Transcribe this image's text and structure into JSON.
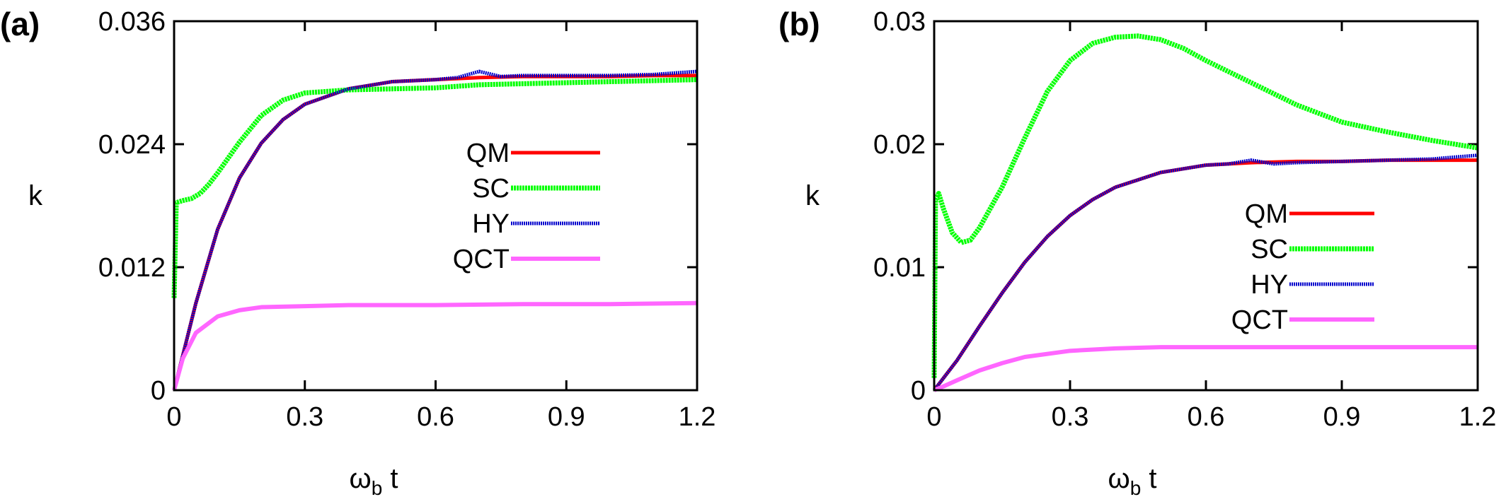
{
  "chart_data": [
    {
      "type": "line",
      "panel_label": "(a)",
      "xlabel_main": "ω",
      "xlabel_sub": "b",
      "xlabel_tail": " t",
      "ylabel": "k",
      "xlim": [
        0,
        1.2
      ],
      "ylim": [
        0,
        0.036
      ],
      "xticks": [
        "0",
        "0.3",
        "0.6",
        "0.9",
        "1.2"
      ],
      "xtick_values": [
        0,
        0.3,
        0.6,
        0.9,
        1.2
      ],
      "yticks": [
        "0",
        "0.012",
        "0.024",
        "0.036"
      ],
      "ytick_values": [
        0,
        0.012,
        0.024,
        0.036
      ],
      "legend_position": "center-right",
      "series": [
        {
          "name": "QM",
          "color": "#ff0000",
          "x": [
            0,
            0.05,
            0.1,
            0.15,
            0.2,
            0.25,
            0.3,
            0.4,
            0.5,
            0.6,
            0.7,
            0.8,
            0.9,
            1.0,
            1.1,
            1.2
          ],
          "y": [
            0,
            0.0085,
            0.0157,
            0.0207,
            0.0241,
            0.0264,
            0.0279,
            0.0294,
            0.0301,
            0.0303,
            0.0305,
            0.0306,
            0.0306,
            0.0306,
            0.0307,
            0.0307
          ]
        },
        {
          "name": "SC",
          "color": "#00ff00",
          "x": [
            0,
            0.005,
            0.02,
            0.04,
            0.06,
            0.08,
            0.1,
            0.15,
            0.2,
            0.25,
            0.3,
            0.4,
            0.5,
            0.6,
            0.7,
            0.8,
            0.9,
            1.0,
            1.1,
            1.2
          ],
          "y": [
            0.009,
            0.0183,
            0.0185,
            0.0187,
            0.0192,
            0.0201,
            0.0212,
            0.0242,
            0.0268,
            0.0283,
            0.029,
            0.0293,
            0.0294,
            0.0295,
            0.0298,
            0.0299,
            0.03,
            0.0301,
            0.0302,
            0.0303
          ]
        },
        {
          "name": "HY",
          "color": "#0000cc",
          "x": [
            0,
            0.05,
            0.1,
            0.15,
            0.2,
            0.25,
            0.3,
            0.4,
            0.5,
            0.6,
            0.65,
            0.7,
            0.75,
            0.8,
            0.9,
            1.0,
            1.1,
            1.2
          ],
          "y": [
            0,
            0.0085,
            0.0157,
            0.0207,
            0.0241,
            0.0264,
            0.0279,
            0.0294,
            0.0301,
            0.0303,
            0.0305,
            0.0311,
            0.0306,
            0.0307,
            0.0307,
            0.0307,
            0.0308,
            0.0311
          ]
        },
        {
          "name": "QCT",
          "color": "#ff66ff",
          "x": [
            0,
            0.02,
            0.05,
            0.1,
            0.15,
            0.2,
            0.3,
            0.4,
            0.6,
            0.8,
            1.0,
            1.2
          ],
          "y": [
            0,
            0.0031,
            0.0056,
            0.0072,
            0.0078,
            0.0081,
            0.0082,
            0.0083,
            0.0083,
            0.0084,
            0.0084,
            0.0085
          ]
        }
      ]
    },
    {
      "type": "line",
      "panel_label": "(b)",
      "xlabel_main": "ω",
      "xlabel_sub": "b",
      "xlabel_tail": " t",
      "ylabel": "k",
      "xlim": [
        0,
        1.2
      ],
      "ylim": [
        0,
        0.03
      ],
      "xticks": [
        "0",
        "0.3",
        "0.6",
        "0.9",
        "1.2"
      ],
      "xtick_values": [
        0,
        0.3,
        0.6,
        0.9,
        1.2
      ],
      "yticks": [
        "0",
        "0.01",
        "0.02",
        "0.03"
      ],
      "ytick_values": [
        0,
        0.01,
        0.02,
        0.03
      ],
      "legend_position": "center-right",
      "series": [
        {
          "name": "QM",
          "color": "#ff0000",
          "x": [
            0,
            0.05,
            0.1,
            0.15,
            0.2,
            0.25,
            0.3,
            0.35,
            0.4,
            0.5,
            0.6,
            0.7,
            0.8,
            0.9,
            1.0,
            1.1,
            1.2
          ],
          "y": [
            0,
            0.0024,
            0.0052,
            0.0079,
            0.0104,
            0.0125,
            0.0142,
            0.0155,
            0.0165,
            0.0177,
            0.0183,
            0.0185,
            0.0186,
            0.0186,
            0.0187,
            0.0187,
            0.0187
          ]
        },
        {
          "name": "SC",
          "color": "#00ff00",
          "x": [
            0,
            0.003,
            0.01,
            0.02,
            0.04,
            0.06,
            0.08,
            0.1,
            0.15,
            0.2,
            0.25,
            0.3,
            0.35,
            0.4,
            0.45,
            0.5,
            0.55,
            0.6,
            0.7,
            0.8,
            0.9,
            1.0,
            1.1,
            1.2
          ],
          "y": [
            0.001,
            0.0155,
            0.016,
            0.0148,
            0.0128,
            0.012,
            0.0122,
            0.0132,
            0.0165,
            0.0205,
            0.0243,
            0.0268,
            0.0282,
            0.0287,
            0.0288,
            0.0285,
            0.0278,
            0.0268,
            0.025,
            0.0232,
            0.0218,
            0.021,
            0.0203,
            0.0197
          ]
        },
        {
          "name": "HY",
          "color": "#0000cc",
          "x": [
            0,
            0.05,
            0.1,
            0.15,
            0.2,
            0.25,
            0.3,
            0.35,
            0.4,
            0.5,
            0.6,
            0.65,
            0.7,
            0.75,
            0.8,
            0.9,
            1.0,
            1.1,
            1.2
          ],
          "y": [
            0,
            0.0024,
            0.0052,
            0.0079,
            0.0104,
            0.0125,
            0.0142,
            0.0155,
            0.0165,
            0.0177,
            0.0183,
            0.0184,
            0.0187,
            0.0184,
            0.0185,
            0.0186,
            0.0187,
            0.0188,
            0.0191
          ]
        },
        {
          "name": "QCT",
          "color": "#ff66ff",
          "x": [
            0,
            0.02,
            0.05,
            0.1,
            0.15,
            0.2,
            0.3,
            0.4,
            0.5,
            0.6,
            0.8,
            1.0,
            1.2
          ],
          "y": [
            0,
            0.0003,
            0.0008,
            0.0016,
            0.0022,
            0.0027,
            0.0032,
            0.0034,
            0.0035,
            0.0035,
            0.0035,
            0.0035,
            0.0035
          ]
        }
      ]
    }
  ]
}
